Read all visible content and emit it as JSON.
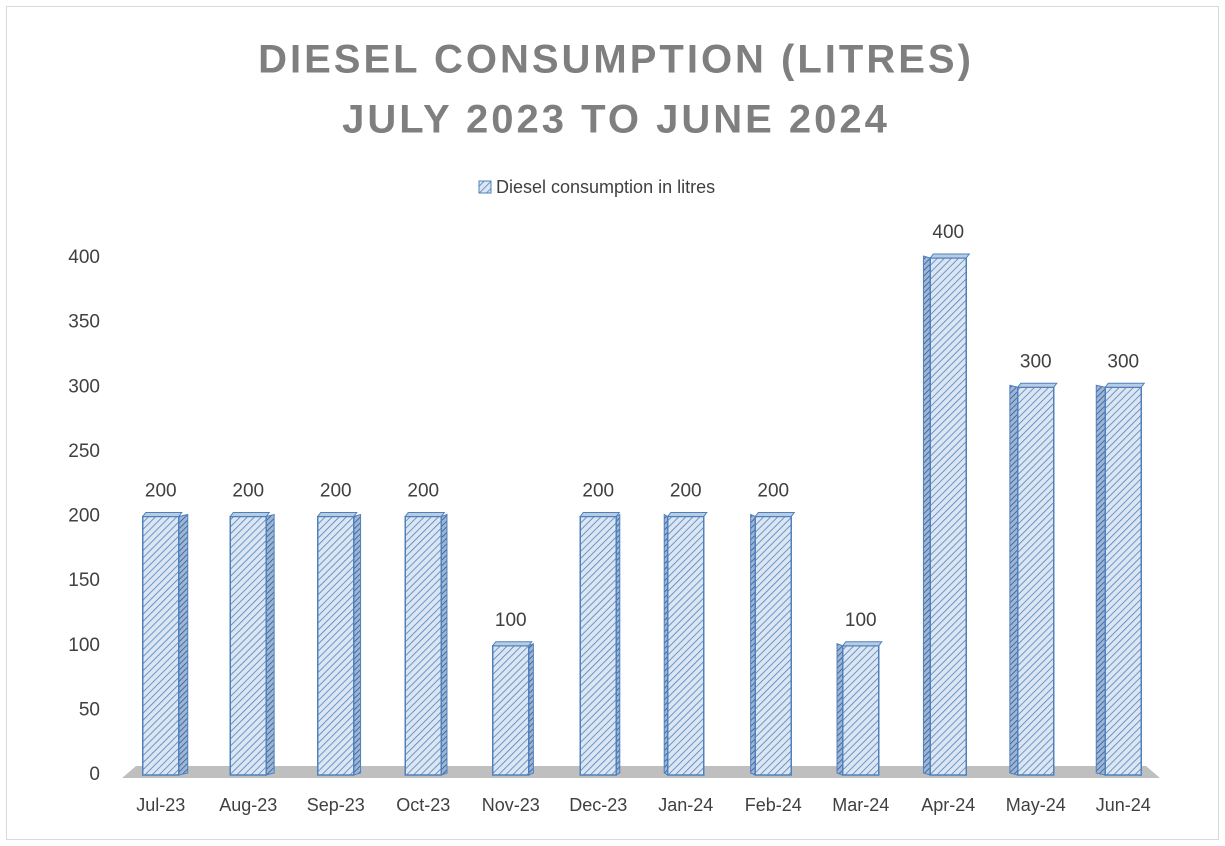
{
  "chart_data": {
    "type": "bar",
    "title": "DIESEL CONSUMPTION  (LITRES)",
    "subtitle": "JULY 2023 TO JUNE 2024",
    "categories": [
      "Jul-23",
      "Aug-23",
      "Sep-23",
      "Oct-23",
      "Nov-23",
      "Dec-23",
      "Jan-24",
      "Feb-24",
      "Mar-24",
      "Apr-24",
      "May-24",
      "Jun-24"
    ],
    "series": [
      {
        "name": "Diesel consumption in litres",
        "color": "#4f81bd",
        "values": [
          200,
          200,
          200,
          200,
          100,
          200,
          200,
          200,
          100,
          400,
          300,
          300
        ]
      }
    ],
    "ylim": [
      0,
      400
    ],
    "yticks": [
      0,
      50,
      100,
      150,
      200,
      250,
      300,
      350,
      400
    ],
    "grid": false,
    "legend": "top",
    "data_labels": true
  }
}
